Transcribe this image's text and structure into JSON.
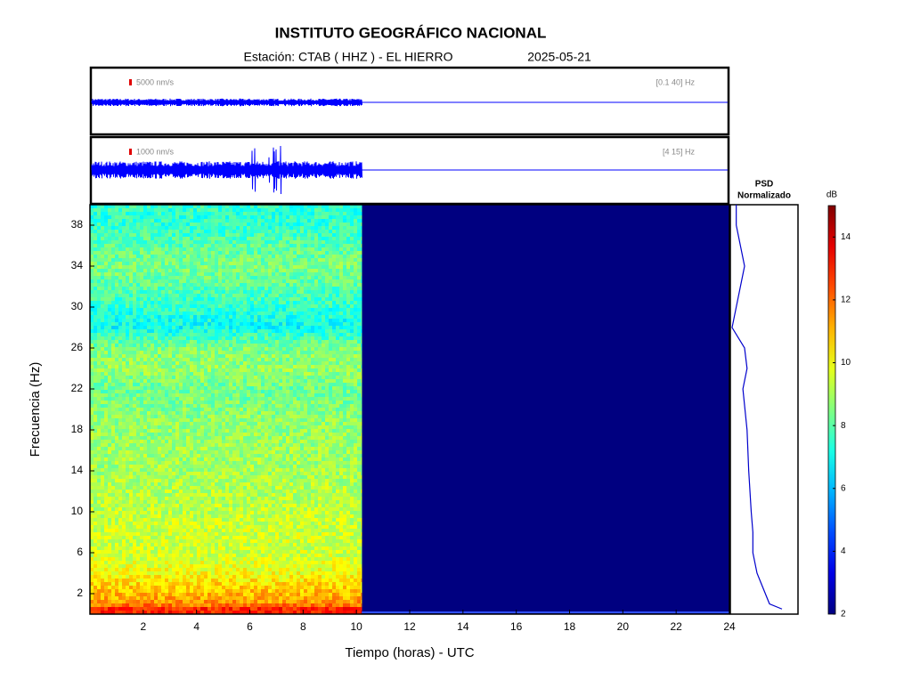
{
  "chart_data": {
    "type": "spectrogram",
    "title": "INSTITUTO GEOGRÁFICO NACIONAL",
    "station": "Estación:  CTAB ( HHZ ) - EL HIERRO",
    "date": "2025-05-21",
    "traces": [
      {
        "scale_label": "5000 nm/s",
        "band_label": "[0.1 40] Hz"
      },
      {
        "scale_label": "1000 nm/s",
        "band_label": "[4 15] Hz"
      }
    ],
    "xlabel": "Tiempo (horas) - UTC",
    "ylabel": "Frecuencia  (Hz)",
    "xlim": [
      0,
      24
    ],
    "xticks": [
      2,
      4,
      6,
      8,
      10,
      12,
      14,
      16,
      18,
      20,
      22,
      24
    ],
    "ylim": [
      0,
      40
    ],
    "yticks": [
      2,
      6,
      10,
      14,
      18,
      22,
      26,
      30,
      34,
      38
    ],
    "recorded_until": 10.2,
    "psd_title": "PSD",
    "psd_subtitle": "Normalizado",
    "spectrum": {
      "frequencies": [
        0.5,
        1,
        2,
        3,
        4,
        6,
        8,
        10,
        14,
        18,
        22,
        24,
        26,
        28,
        30,
        34,
        38,
        40
      ],
      "db": [
        13,
        11.5,
        11,
        10.5,
        10,
        9.5,
        9.5,
        9.3,
        9,
        8.8,
        8.3,
        8.8,
        8.5,
        7,
        7.5,
        8.5,
        7.5,
        7.5
      ]
    },
    "colorbar_label": "dB",
    "clim": [
      2,
      15
    ],
    "cticks": [
      2,
      4,
      6,
      8,
      10,
      12,
      14
    ]
  }
}
